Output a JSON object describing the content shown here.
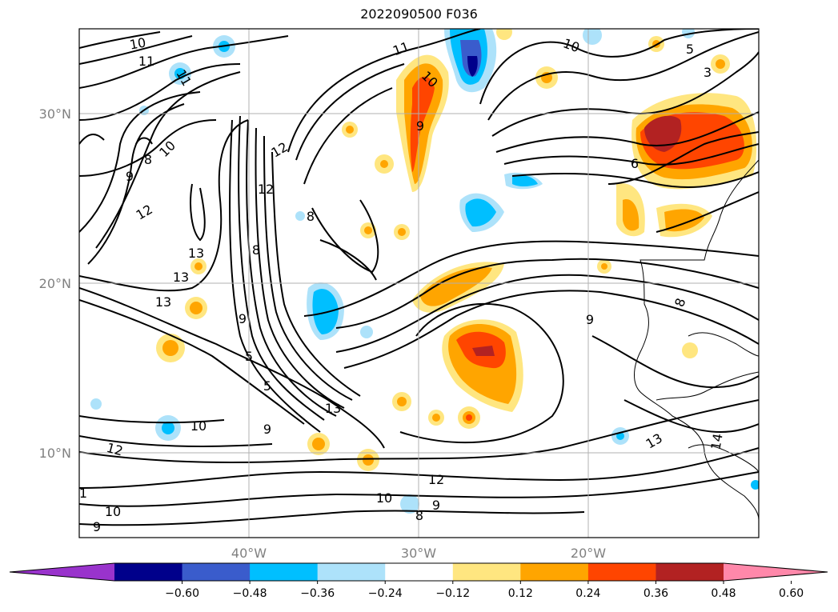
{
  "title": "2022090500 F036",
  "chart_data": {
    "type": "map-contour",
    "title": "2022090500 F036",
    "lat_ticks": [
      "30°N",
      "20°N",
      "10°N"
    ],
    "lon_ticks": [
      "40°W",
      "30°W",
      "20°W"
    ],
    "lon_range": [
      -50,
      -10
    ],
    "lat_range": [
      5,
      35
    ],
    "grid": true,
    "colorbar": {
      "ticks": [
        "−0.60",
        "−0.48",
        "−0.36",
        "−0.24",
        "−0.12",
        "0.12",
        "0.24",
        "0.36",
        "0.48",
        "0.60"
      ],
      "colors": [
        "#9933cc",
        "#00008b",
        "#3a5ccc",
        "#00bfff",
        "#ade2fa",
        "#ffffff",
        "#ffe680",
        "#ffa500",
        "#ff4500",
        "#b22222",
        "#ff88aa"
      ],
      "extend": "both"
    },
    "contour_labels": [
      "10",
      "11",
      "11",
      "10",
      "8",
      "9",
      "12",
      "12",
      "12",
      "13",
      "13",
      "13",
      "8",
      "9",
      "5",
      "5",
      "13",
      "10",
      "9",
      "12",
      "1",
      "10",
      "9",
      "11",
      "10",
      "9",
      "8",
      "12",
      "10",
      "9",
      "8",
      "10",
      "6",
      "8",
      "9",
      "13",
      "14",
      "5",
      "3"
    ]
  }
}
